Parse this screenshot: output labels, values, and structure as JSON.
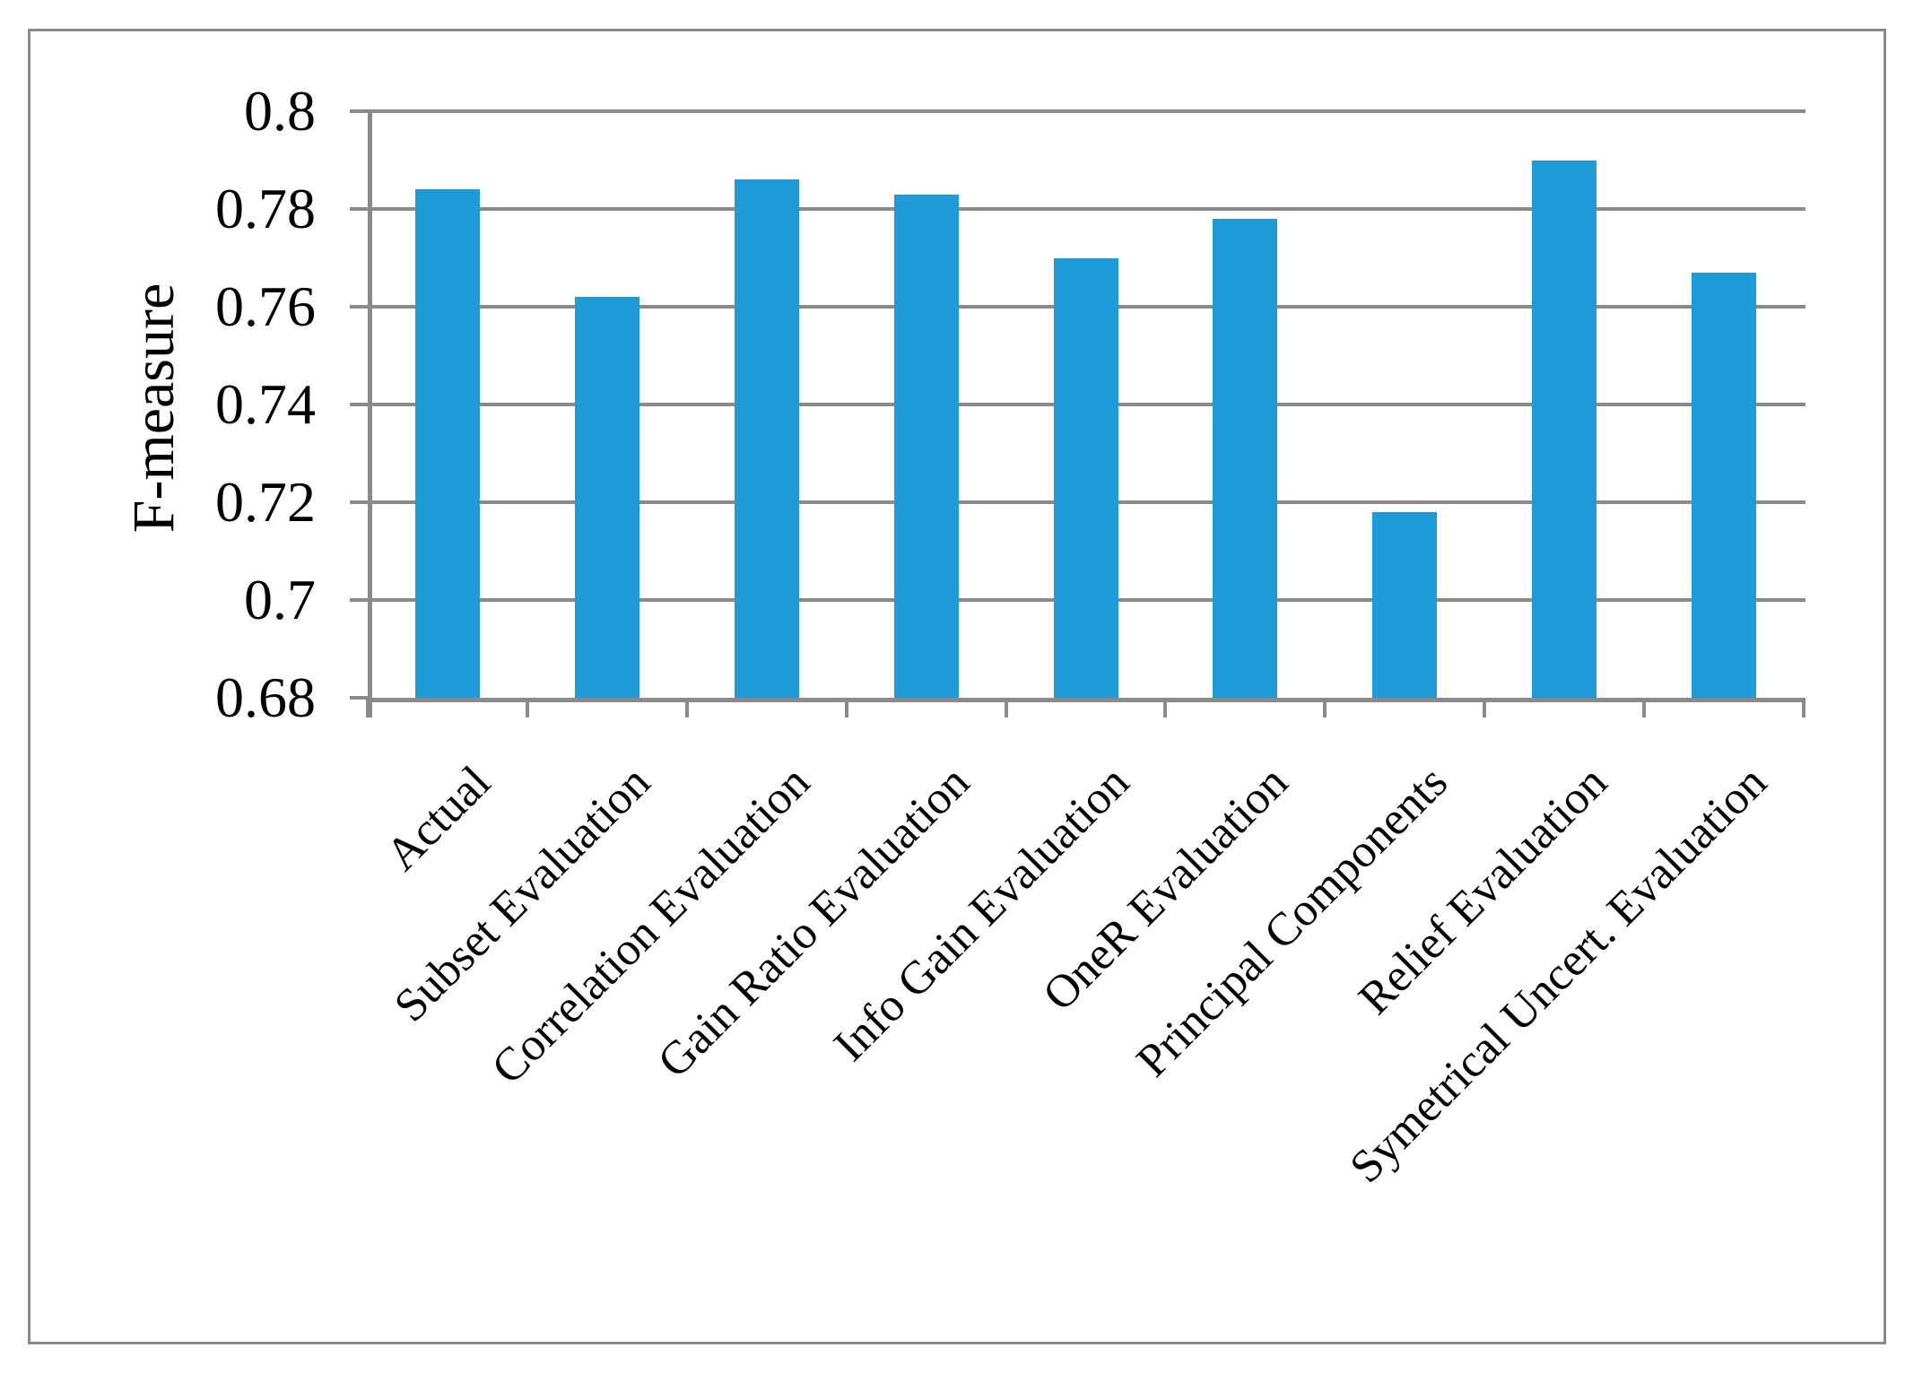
{
  "chart_data": {
    "type": "bar",
    "title": "",
    "xlabel": "",
    "ylabel": "F-measure",
    "categories": [
      "Actual",
      "Subset Evaluation",
      "Correlation Evaluation",
      "Gain Ratio Evaluation",
      "Info Gain Evaluation",
      "OneR Evaluation",
      "Principal Components",
      "Relief Evaluation",
      "Symetrical Uncert. Evaluation"
    ],
    "values": [
      0.784,
      0.762,
      0.786,
      0.783,
      0.77,
      0.778,
      0.718,
      0.79,
      0.767
    ],
    "ylim": [
      0.68,
      0.8
    ],
    "yticks": [
      0.8,
      0.78,
      0.76,
      0.74,
      0.72,
      0.7,
      0.68
    ],
    "ytick_labels": [
      "0.8",
      "0.78",
      "0.76",
      "0.74",
      "0.72",
      "0.7",
      "0.68"
    ],
    "grid": true,
    "legend": false,
    "bar_color": "#1f9cd7",
    "grid_color": "#8a8a8a",
    "text_color": "#000000",
    "frame_color": "#8a8a8a"
  }
}
